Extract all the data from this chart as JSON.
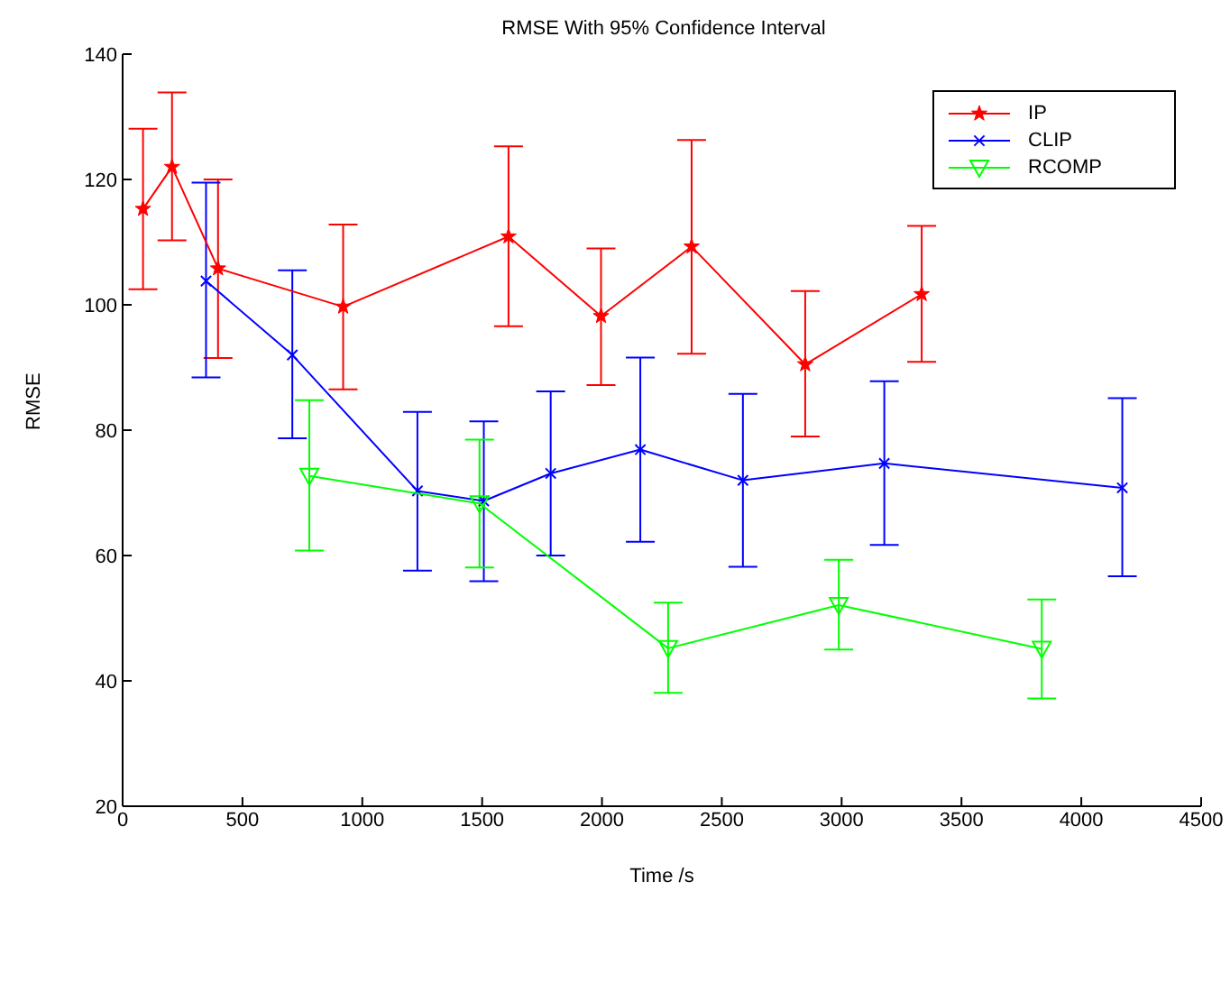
{
  "chart_data": {
    "type": "line",
    "title": "RMSE With 95% Confidence Interval",
    "xlabel": "Time /s",
    "ylabel": "RMSE",
    "xlim": [
      0,
      4500
    ],
    "xticks": [
      0,
      500,
      1000,
      1500,
      2000,
      2500,
      3000,
      3500,
      4000,
      4500
    ],
    "ylim": [
      20,
      140
    ],
    "yticks": [
      20,
      40,
      60,
      80,
      100,
      120,
      140
    ],
    "grid": false,
    "legend": "top right",
    "line_style": "solid",
    "series": [
      {
        "name": "IP",
        "color": "#ff0000",
        "marker": "star",
        "x": [
          85,
          206,
          398,
          920,
          1610,
          1996,
          2374,
          2848,
          3334
        ],
        "values": [
          115.3,
          122.0,
          105.8,
          99.7,
          110.9,
          98.2,
          109.3,
          90.5,
          101.7
        ],
        "errors": [
          [
            102.5,
            128.1
          ],
          [
            110.3,
            133.9
          ],
          [
            91.5,
            120.0
          ],
          [
            86.5,
            112.8
          ],
          [
            96.6,
            125.3
          ],
          [
            87.2,
            109.0
          ],
          [
            92.2,
            126.3
          ],
          [
            79.0,
            102.2
          ],
          [
            90.9,
            112.6
          ]
        ]
      },
      {
        "name": "CLIP",
        "color": "#0000ff",
        "marker": "cross",
        "x": [
          348,
          708,
          1230,
          1507,
          1786,
          2160,
          2588,
          3178,
          4171
        ],
        "values": [
          103.8,
          92.0,
          70.3,
          68.7,
          73.1,
          76.9,
          72.0,
          74.7,
          70.8
        ],
        "errors": [
          [
            88.4,
            119.5
          ],
          [
            78.7,
            105.5
          ],
          [
            57.6,
            82.9
          ],
          [
            55.9,
            81.4
          ],
          [
            60.0,
            86.2
          ],
          [
            62.2,
            91.6
          ],
          [
            58.2,
            85.8
          ],
          [
            61.7,
            87.8
          ],
          [
            56.7,
            85.1
          ]
        ]
      },
      {
        "name": "RCOMP",
        "color": "#00ff00",
        "marker": "triangle",
        "x": [
          779,
          1489,
          2276,
          2988,
          3835
        ],
        "values": [
          72.7,
          68.3,
          45.2,
          52.1,
          45.1
        ],
        "errors": [
          [
            60.8,
            84.8
          ],
          [
            58.1,
            78.5
          ],
          [
            38.1,
            52.5
          ],
          [
            45.0,
            59.3
          ],
          [
            37.2,
            53.0
          ]
        ]
      }
    ]
  }
}
